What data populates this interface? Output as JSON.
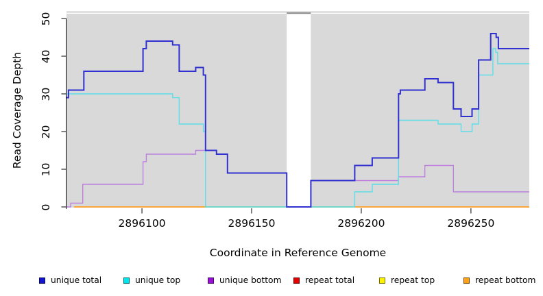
{
  "chart_data": {
    "type": "line",
    "subtype": "step-coverage-plot",
    "title": "",
    "xlabel": "Coordinate in Reference Genome",
    "ylabel": "Read Coverage Depth",
    "x_ticks": [
      2896100,
      2896150,
      2896200,
      2896250
    ],
    "y_ticks": [
      0,
      10,
      20,
      30,
      40,
      50
    ],
    "xlim": [
      2896065.6,
      2896276.6
    ],
    "ylim": [
      0,
      50
    ],
    "grid": false,
    "legend_position": "bottom",
    "plot_bg": "#d9d9d9",
    "top_border_color": "#bebebe",
    "mask_region": {
      "start": 2896166,
      "end": 2896177,
      "fill": "#ffffff",
      "cap_color": "#8c8c8c"
    },
    "baseline_blend": {
      "start": 2896129,
      "end": 2896197,
      "value": 0,
      "color": "#7ed389"
    },
    "series": [
      {
        "name": "repeat total",
        "color": "#e60000",
        "width": 1.3,
        "points": [
          [
            2896069,
            0
          ]
        ],
        "end": 2896276.6
      },
      {
        "name": "repeat top",
        "color": "#ffee00",
        "width": 1.3,
        "points": [
          [
            2896069,
            0
          ]
        ],
        "end": 2896276.6
      },
      {
        "name": "repeat bottom",
        "color": "#ffa024",
        "width": 1.6,
        "points": [
          [
            2896069,
            0
          ]
        ],
        "end": 2896276.6
      },
      {
        "name": "unique bottom",
        "color": "#bd80df",
        "width": 1.4,
        "points": [
          [
            2896065.6,
            0
          ],
          [
            2896067.5,
            1
          ],
          [
            2896073,
            6
          ],
          [
            2896100.5,
            12
          ],
          [
            2896102,
            14
          ],
          [
            2896124.5,
            15
          ],
          [
            2896134,
            14
          ],
          [
            2896139,
            9
          ],
          [
            2896166,
            0
          ],
          [
            2896177,
            7
          ],
          [
            2896217,
            8
          ],
          [
            2896229,
            11
          ],
          [
            2896242,
            4
          ]
        ],
        "end": 2896276.6
      },
      {
        "name": "unique top",
        "color": "#5cdee8",
        "width": 1.4,
        "points": [
          [
            2896065.6,
            30
          ],
          [
            2896114,
            29
          ],
          [
            2896117,
            22
          ],
          [
            2896128,
            20
          ],
          [
            2896129,
            0
          ],
          [
            2896197,
            4
          ],
          [
            2896205,
            6
          ],
          [
            2896217,
            23
          ],
          [
            2896235,
            22
          ],
          [
            2896245.5,
            20
          ],
          [
            2896250.5,
            22
          ],
          [
            2896253.5,
            35
          ],
          [
            2896260,
            42
          ],
          [
            2896261.3,
            41
          ],
          [
            2896262.2,
            38
          ]
        ],
        "end": 2896276.6
      },
      {
        "name": "unique total",
        "color": "#3030d0",
        "width": 2,
        "points": [
          [
            2896065.6,
            29
          ],
          [
            2896066.5,
            31
          ],
          [
            2896073.5,
            36
          ],
          [
            2896100.5,
            42
          ],
          [
            2896102,
            44
          ],
          [
            2896114,
            43
          ],
          [
            2896117,
            36
          ],
          [
            2896124.5,
            37
          ],
          [
            2896128,
            35
          ],
          [
            2896129,
            15
          ],
          [
            2896134,
            14
          ],
          [
            2896139,
            9
          ],
          [
            2896166,
            0
          ],
          [
            2896177,
            7
          ],
          [
            2896197,
            11
          ],
          [
            2896205,
            13
          ],
          [
            2896217,
            30
          ],
          [
            2896217.8,
            31
          ],
          [
            2896229,
            34
          ],
          [
            2896235,
            33
          ],
          [
            2896242,
            26
          ],
          [
            2896245.5,
            24
          ],
          [
            2896250.5,
            26
          ],
          [
            2896253.5,
            39
          ],
          [
            2896259,
            46
          ],
          [
            2896261.5,
            45
          ],
          [
            2896262.5,
            42
          ]
        ],
        "end": 2896276.6
      }
    ]
  },
  "legend": {
    "items": [
      {
        "label": "unique total",
        "color": "#1414cc"
      },
      {
        "label": "unique top",
        "color": "#00e5ee"
      },
      {
        "label": "unique bottom",
        "color": "#9a10d6"
      },
      {
        "label": "repeat total",
        "color": "#e60000"
      },
      {
        "label": "repeat top",
        "color": "#fff200"
      },
      {
        "label": "repeat bottom",
        "color": "#ffa018"
      }
    ]
  }
}
